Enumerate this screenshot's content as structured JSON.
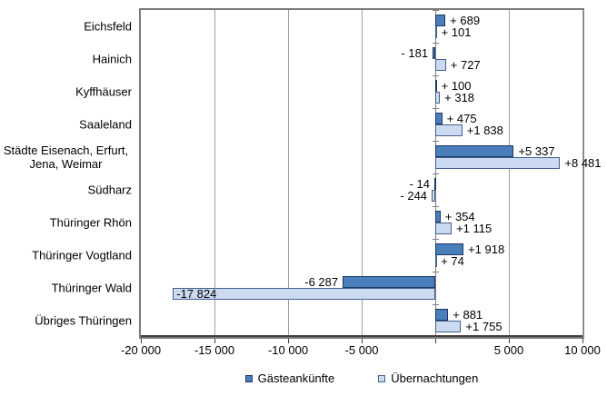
{
  "chart_data": {
    "type": "bar",
    "orientation": "horizontal",
    "title": "",
    "categories": [
      "Eichsfeld",
      "Hainich",
      "Kyffhäuser",
      "Saaleland",
      "Städte Eisenach, Erfurt,\nJena, Weimar",
      "Südharz",
      "Thüringer Rhön",
      "Thüringer Vogtland",
      "Thüringer Wald",
      "Übriges Thüringen"
    ],
    "series": [
      {
        "name": "Gästeankünfte",
        "fill": "#4a7ebb",
        "border": "#1f3864",
        "values": [
          689,
          -181,
          100,
          475,
          5337,
          -14,
          354,
          1918,
          -6287,
          881
        ],
        "labels": [
          "+ 689",
          "- 181",
          "+ 100",
          "+ 475",
          "+5 337",
          "- 14",
          "+ 354",
          "+1 918",
          "-6 287",
          "+ 881"
        ]
      },
      {
        "name": "Übernachtungen",
        "fill": "#cbd9f1",
        "border": "#44618c",
        "values": [
          101,
          727,
          318,
          1838,
          8481,
          -244,
          1115,
          74,
          -17824,
          1755
        ],
        "labels": [
          "+ 101",
          "+ 727",
          "+ 318",
          "+1 838",
          "+8 481",
          "- 244",
          "+1 115",
          "+ 74",
          "-17 824",
          "+1 755"
        ]
      }
    ],
    "x_axis": {
      "min": -20000,
      "max": 10000,
      "tick_values": [
        -20000,
        -15000,
        -10000,
        -5000,
        0,
        5000,
        10000
      ],
      "tick_labels": [
        "-20 000",
        "-15 000",
        "-10 000",
        "-5 000",
        "",
        "5 000",
        "10 000"
      ]
    },
    "legend_position": "bottom",
    "grid": true,
    "colors": {
      "gridline": "#a0a0a0",
      "plot_border": "#7a7a7a",
      "value_axis_line": "#3f3f3f",
      "category_axis_line": "#808080",
      "text": "#000000",
      "background": "#ffffff"
    }
  }
}
